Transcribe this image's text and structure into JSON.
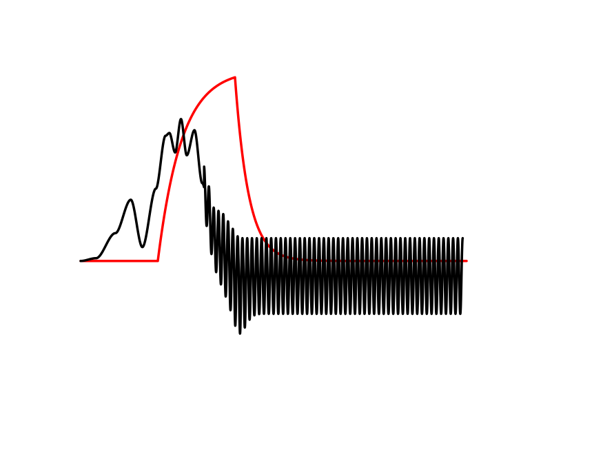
{
  "chart_data": {
    "type": "line",
    "title": "",
    "xlabel": "",
    "ylabel": "",
    "axes_visible": false,
    "grid": false,
    "legend": "none",
    "xlim": [
      0,
      10
    ],
    "ylim": [
      -1.6,
      3.6
    ],
    "series": [
      {
        "color": "#ff0000",
        "kind": "smooth pulse: flat baseline, exponential rise to plateau, exponential decay back to baseline",
        "baseline": 0,
        "peak": 3.3,
        "rise_start_x": 2.0,
        "peak_x": 4.0,
        "end_x": 10.0,
        "rise_time_constant": 0.62,
        "decay_time_constant": 0.35
      },
      {
        "color": "#000000",
        "kind": "bumps on rising envelope, then sustained fast oscillation about a negative offset",
        "start_x": 0.0,
        "end_x": 9.9,
        "points": [
          [
            0.0,
            0.0
          ],
          [
            0.4,
            0.05
          ],
          [
            0.9,
            0.5
          ],
          [
            1.3,
            1.1
          ],
          [
            1.6,
            0.25
          ],
          [
            1.95,
            1.3
          ],
          [
            2.2,
            2.25
          ],
          [
            2.3,
            2.3
          ],
          [
            2.45,
            1.95
          ],
          [
            2.6,
            2.55
          ],
          [
            2.75,
            1.9
          ],
          [
            2.95,
            2.35
          ],
          [
            3.15,
            1.4
          ],
          [
            3.3,
            1.1
          ],
          [
            3.45,
            0.7
          ]
        ],
        "oscillation": {
          "from_x": 3.2,
          "to_x": 9.9,
          "cycles": 54,
          "center": -0.27,
          "steady_amplitude": 0.68,
          "min_dip": -1.4,
          "min_dip_x": 4.1
        }
      }
    ]
  }
}
